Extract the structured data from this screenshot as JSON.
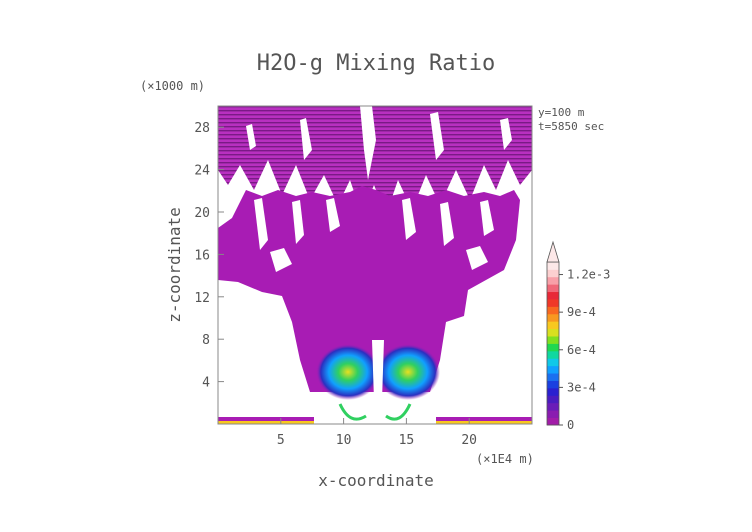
{
  "chart_data": {
    "type": "heatmap",
    "title": "H2O-g Mixing Ratio",
    "xlabel": "x-coordinate",
    "ylabel": "z-coordinate",
    "x_unit": "(×1E4 m)",
    "y_unit": "(×1000 m)",
    "annotations": [
      "y=100 m",
      "t=5850 sec"
    ],
    "xlim": [
      0,
      25
    ],
    "ylim": [
      0,
      30
    ],
    "x_ticks": [
      5,
      10,
      15,
      20
    ],
    "y_ticks": [
      4,
      8,
      12,
      16,
      20,
      24,
      28
    ],
    "colorbar": {
      "min": 0,
      "max": 0.0013,
      "extend": "max",
      "tick_values": [
        0,
        0.0003,
        0.0006,
        0.0009,
        0.0012
      ],
      "tick_labels": [
        "0",
        "3e-4",
        "6e-4",
        "9e-4",
        "1.2e-3"
      ],
      "colors": [
        "#a21ca8",
        "#8a1cb0",
        "#6a1cb8",
        "#4a1cc0",
        "#2a20d0",
        "#1a40e0",
        "#1a70f0",
        "#10a0ff",
        "#10c8e8",
        "#10d8a0",
        "#20d850",
        "#80e020",
        "#d8e020",
        "#f8c820",
        "#f89820",
        "#f86820",
        "#f03828",
        "#e82838",
        "#f06878",
        "#f8a0a8",
        "#fcd0d0",
        "#fde8e8"
      ],
      "extend_color": "#fde8e8"
    }
  },
  "colors": {
    "field_main": "#a81cb4",
    "stripe_dark": "#7a1a86",
    "text": "#555555",
    "axis": "#888888"
  }
}
